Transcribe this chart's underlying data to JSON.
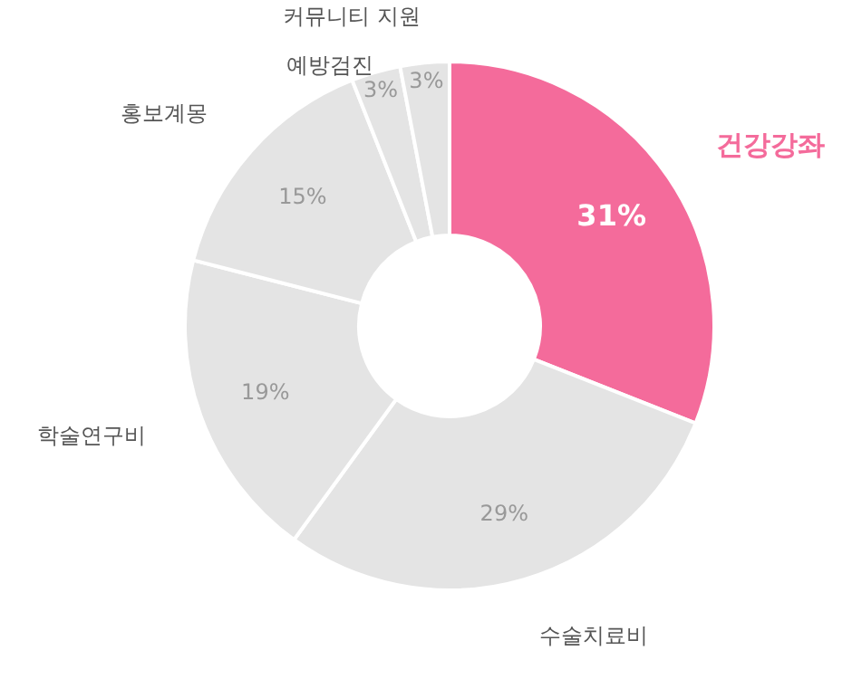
{
  "chart_data": {
    "type": "donut",
    "categories": [
      "건강강좌",
      "수술치료비",
      "학술연구비",
      "홍보계몽",
      "예방검진",
      "커뮤니티 지원"
    ],
    "values": [
      31,
      29,
      19,
      15,
      3,
      3
    ],
    "value_labels": [
      "31%",
      "29%",
      "19%",
      "15%",
      "3%",
      "3%"
    ],
    "colors": [
      "#f46b9b",
      "#e4e4e4",
      "#e4e4e4",
      "#e4e4e4",
      "#e4e4e4",
      "#e4e4e4"
    ]
  }
}
